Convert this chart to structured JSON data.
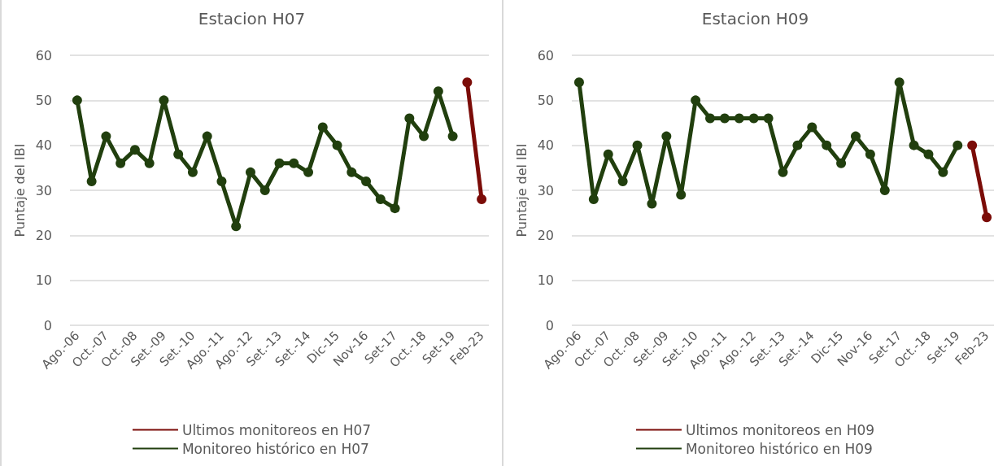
{
  "chart_data": [
    {
      "type": "line",
      "title": "Estacion H07",
      "ylabel": "Puntaje del IBI",
      "categories": [
        "Ago.-06",
        null,
        "Oct.-07",
        null,
        "Oct.-08",
        null,
        "Set.-09",
        null,
        "Set.-10",
        null,
        "Ago.-11",
        null,
        "Ago.-12",
        null,
        "Set.-13",
        null,
        "Set.-14",
        null,
        "Dic-15",
        null,
        "Nov-16",
        null,
        "Set-17",
        null,
        "Oct.-18",
        null,
        "Set-19",
        null,
        "Feb-23"
      ],
      "series": [
        {
          "name": "Ultimos monitoreos en H07",
          "color": "#7b0c08",
          "values": [
            null,
            null,
            null,
            null,
            null,
            null,
            null,
            null,
            null,
            null,
            null,
            null,
            null,
            null,
            null,
            null,
            null,
            null,
            null,
            null,
            null,
            null,
            null,
            null,
            null,
            null,
            null,
            54,
            28
          ]
        },
        {
          "name": "Monitoreo histórico en H07",
          "color": "#213f0e",
          "values": [
            50,
            32,
            42,
            36,
            39,
            36,
            50,
            38,
            34,
            42,
            32,
            22,
            34,
            30,
            36,
            36,
            34,
            44,
            40,
            34,
            32,
            28,
            26,
            46,
            42,
            52,
            42,
            null,
            null
          ]
        }
      ],
      "ylim": [
        0,
        60
      ],
      "yticks": [
        0,
        10,
        20,
        30,
        40,
        50,
        60
      ],
      "grid": "y",
      "legend": "bottom",
      "marker": "circle",
      "line_style": "solid"
    },
    {
      "type": "line",
      "title": "Estacion H09",
      "ylabel": "Puntaje del IBI",
      "categories": [
        "Ago.-06",
        null,
        "Oct.-07",
        null,
        "Oct.-08",
        null,
        "Set.-09",
        null,
        "Set.-10",
        null,
        "Ago.-11",
        null,
        "Ago.-12",
        null,
        "Set.-13",
        null,
        "Set.-14",
        null,
        "Dic-15",
        null,
        "Nov-16",
        null,
        "Set-17",
        null,
        "Oct.-18",
        null,
        "Set-19",
        null,
        "Feb-23"
      ],
      "series": [
        {
          "name": "Ultimos monitoreos en H09",
          "color": "#7b0c08",
          "values": [
            null,
            null,
            null,
            null,
            null,
            null,
            null,
            null,
            null,
            null,
            null,
            null,
            null,
            null,
            null,
            null,
            null,
            null,
            null,
            null,
            null,
            null,
            null,
            null,
            null,
            null,
            null,
            40,
            24
          ]
        },
        {
          "name": "Monitoreo histórico en H09",
          "color": "#213f0e",
          "values": [
            54,
            28,
            38,
            32,
            40,
            27,
            42,
            29,
            50,
            46,
            46,
            46,
            46,
            46,
            34,
            40,
            44,
            40,
            36,
            42,
            38,
            30,
            54,
            40,
            38,
            34,
            40,
            null,
            null
          ]
        }
      ],
      "ylim": [
        0,
        60
      ],
      "yticks": [
        0,
        10,
        20,
        30,
        40,
        50,
        60
      ],
      "grid": "y",
      "legend": "bottom",
      "marker": "circle",
      "line_style": "solid"
    }
  ]
}
